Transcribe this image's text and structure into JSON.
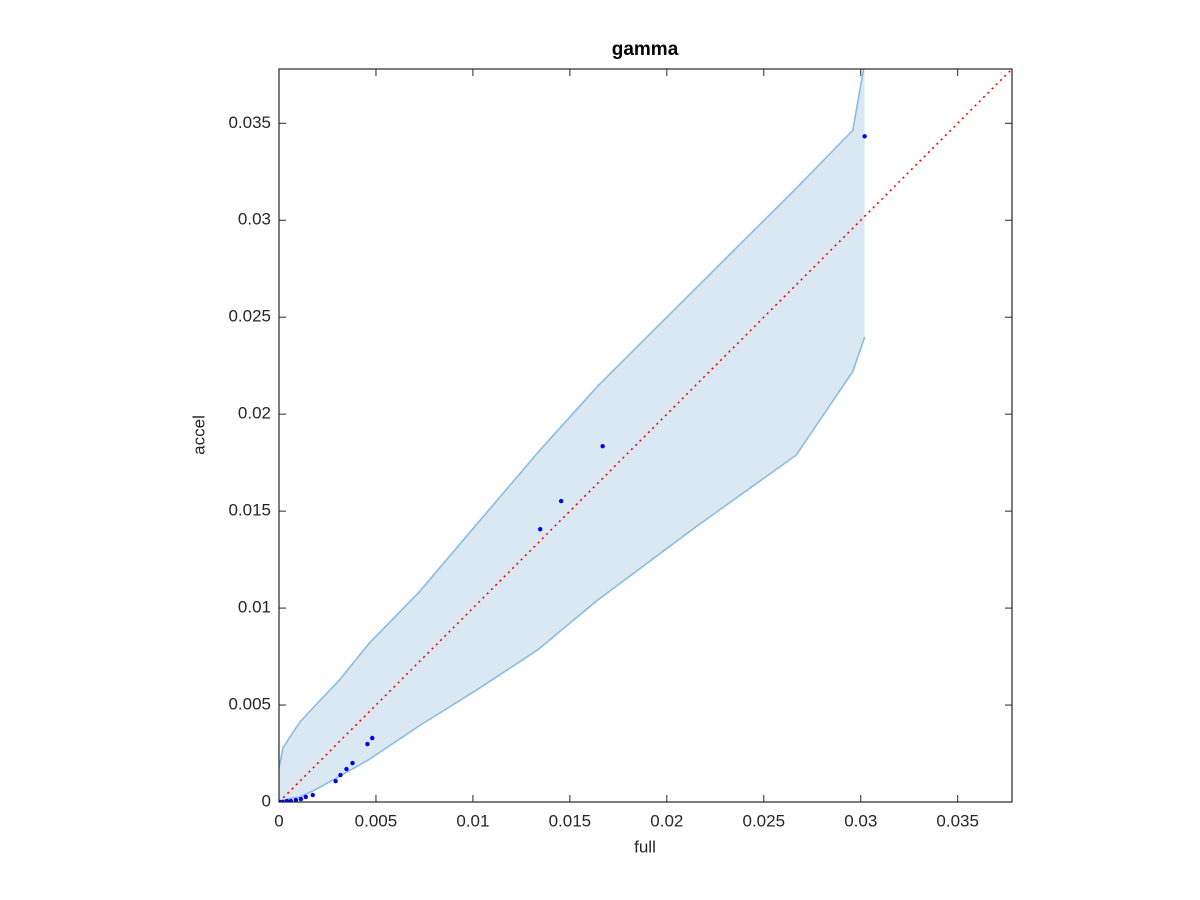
{
  "chart_data": {
    "type": "scatter",
    "title": "gamma",
    "x_label": "full",
    "y_label": "accel",
    "xlim": [
      0,
      0.0378
    ],
    "ylim": [
      0,
      0.0378
    ],
    "xticks": [
      0,
      0.005,
      0.01,
      0.015,
      0.02,
      0.025,
      0.03,
      0.035
    ],
    "yticks": [
      0,
      0.005,
      0.01,
      0.015,
      0.02,
      0.025,
      0.03,
      0.035
    ],
    "grid": false,
    "band": {
      "fill": "#dae8f4",
      "color": "#88bde0",
      "x": [
        0,
        0.0002,
        0.00056,
        0.00108,
        0.00184,
        0.00312,
        0.00466,
        0.00722,
        0.01029,
        0.01336,
        0.01643,
        0.02155,
        0.02667,
        0.02959,
        0.0302
      ],
      "upper": [
        0.00175,
        0.00278,
        0.00335,
        0.00412,
        0.00495,
        0.00629,
        0.0082,
        0.01082,
        0.01443,
        0.01804,
        0.02144,
        0.02655,
        0.03165,
        0.03464,
        0.0381
      ],
      "lower": [
        0,
        8e-05,
        0.00018,
        0.00026,
        0.00062,
        0.00132,
        0.0022,
        0.00392,
        0.00584,
        0.00786,
        0.01041,
        0.01423,
        0.01789,
        0.0222,
        0.02397
      ]
    },
    "reference_color": "#ff0000",
    "points": {
      "color": "#0000ff",
      "x": [
        0.0302,
        0.01669,
        0.01455,
        0.01347,
        0.00481,
        0.00456,
        0.00379,
        0.00348,
        0.00317,
        0.00292,
        0.00174,
        0.00138,
        0.00113,
        0.00087,
        0.00061,
        0.00041,
        0.0002,
        5e-05
      ],
      "y": [
        0.03433,
        0.01835,
        0.01552,
        0.01407,
        0.0033,
        0.00299,
        0.00201,
        0.0017,
        0.00139,
        0.00108,
        0.00036,
        0.00026,
        0.00015,
        0.0001,
        5e-05,
        5e-05,
        0,
        0
      ]
    }
  }
}
